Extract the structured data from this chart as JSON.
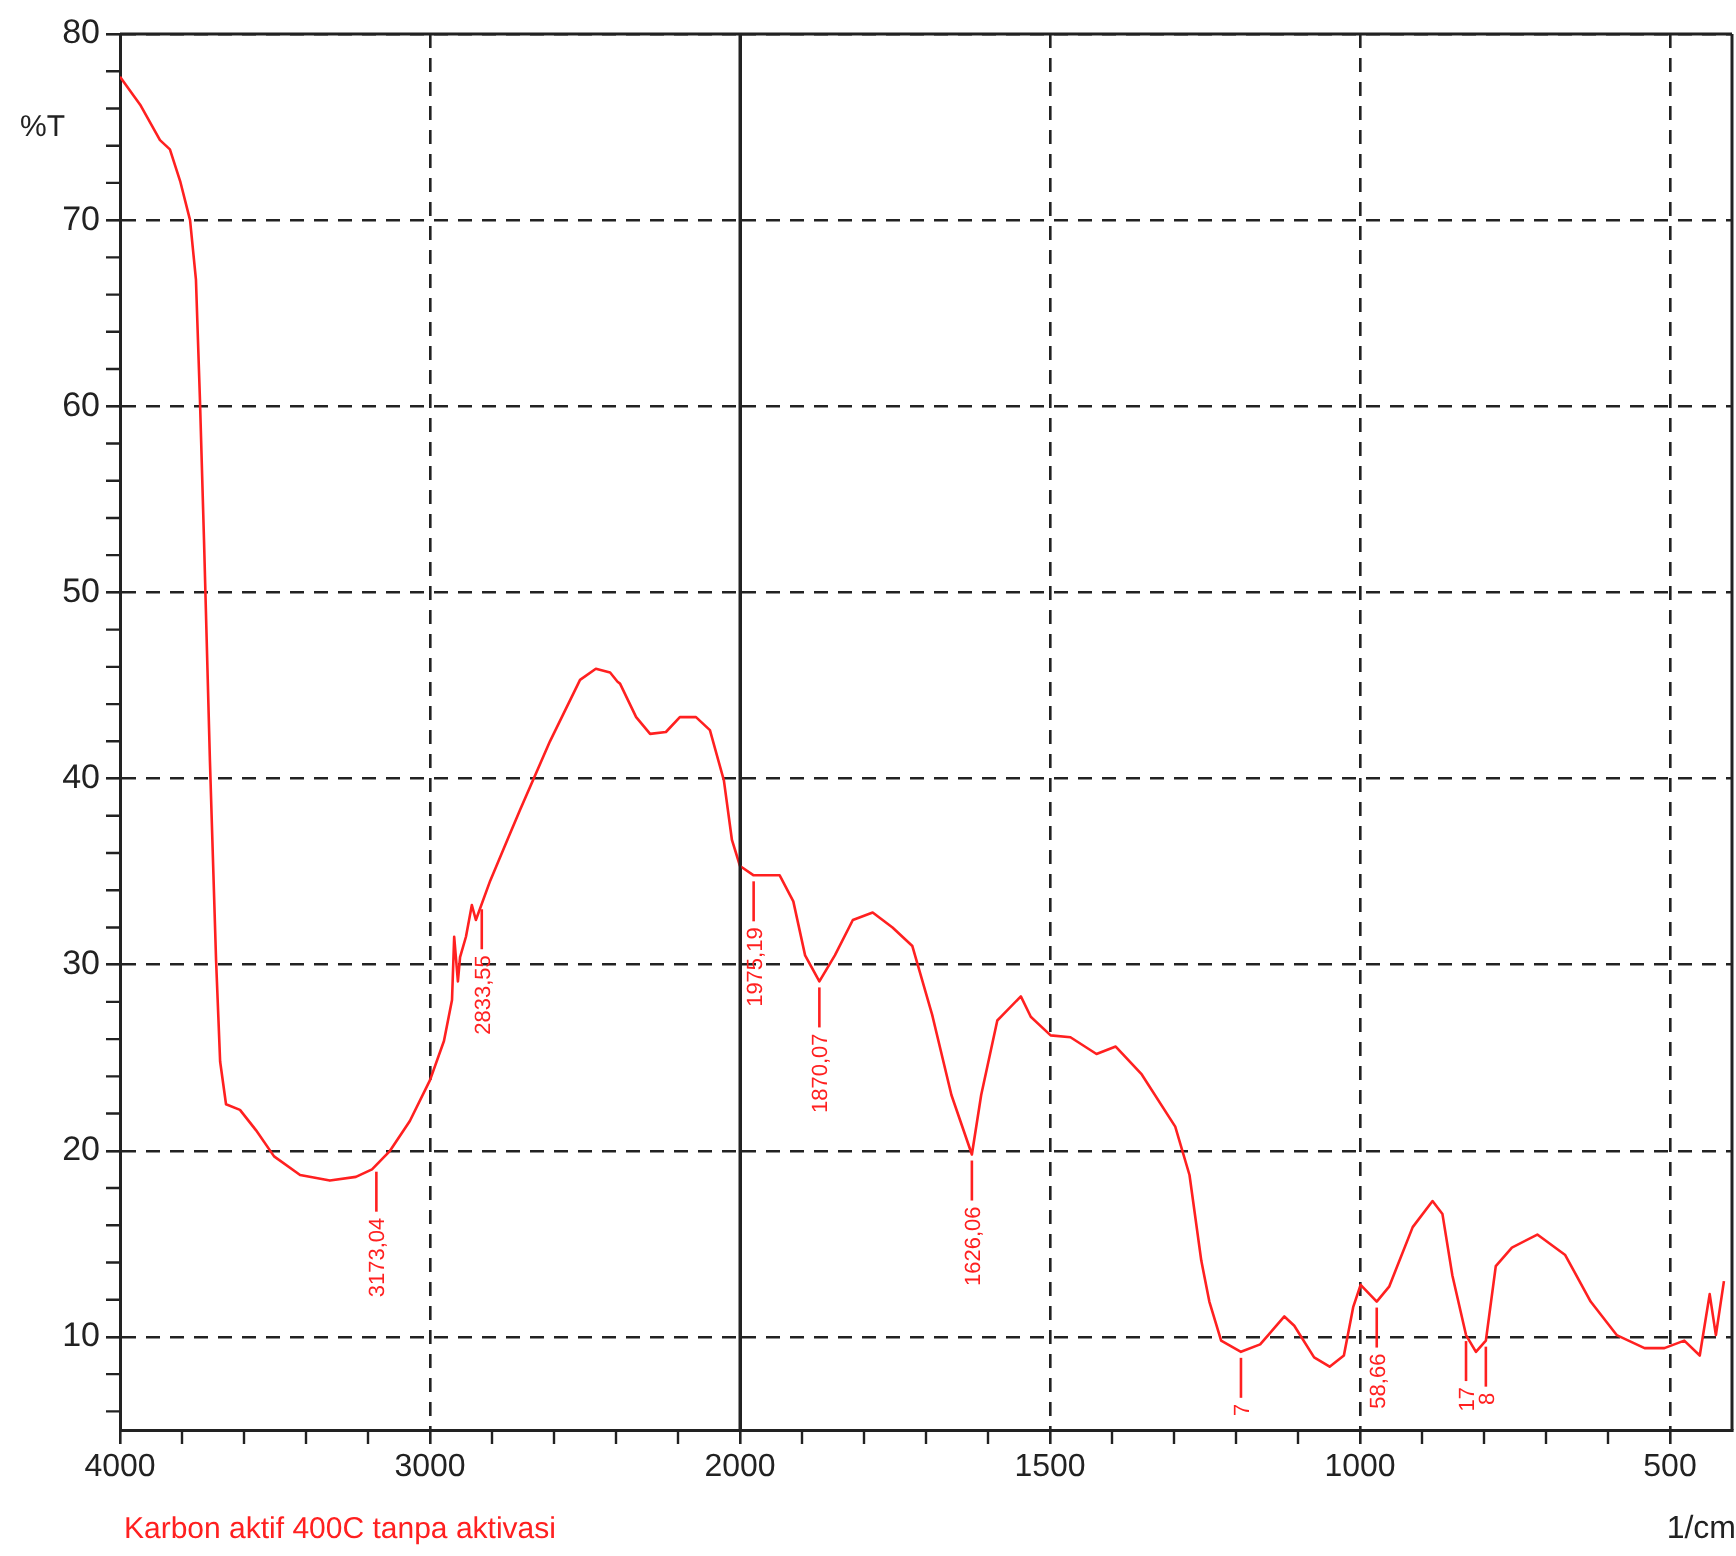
{
  "chart_data": [
    {
      "type": "line",
      "title": "Karbon aktif 400C tanpa aktivasi",
      "ylabel": "%T",
      "xlim": [
        4000,
        2000
      ],
      "ylim": [
        5,
        80
      ],
      "xticks": [
        4000,
        {
          "value": 3800,
          "label": null
        },
        {
          "value": 3600,
          "label": null
        },
        {
          "value": 3400,
          "label": null
        },
        {
          "value": 3200,
          "label": null
        },
        3000,
        {
          "value": 2800,
          "label": null
        },
        {
          "value": 2600,
          "label": null
        },
        {
          "value": 2400,
          "label": null
        },
        {
          "value": 2200,
          "label": null
        },
        2000
      ],
      "yticks": [
        {
          "value": 6,
          "label": null
        },
        {
          "value": 8,
          "label": null
        },
        10,
        {
          "value": 12,
          "label": null
        },
        {
          "value": 14,
          "label": null
        },
        {
          "value": 16,
          "label": null
        },
        {
          "value": 18,
          "label": null
        },
        20,
        {
          "value": 22,
          "label": null
        },
        {
          "value": 24,
          "label": null
        },
        {
          "value": 26,
          "label": null
        },
        {
          "value": 28,
          "label": null
        },
        30,
        {
          "value": 32,
          "label": null
        },
        {
          "value": 34,
          "label": null
        },
        {
          "value": 36,
          "label": null
        },
        {
          "value": 38,
          "label": null
        },
        40,
        {
          "value": 42,
          "label": null
        },
        {
          "value": 44,
          "label": null
        },
        {
          "value": 46,
          "label": null
        },
        {
          "value": 48,
          "label": null
        },
        50,
        {
          "value": 52,
          "label": null
        },
        {
          "value": 54,
          "label": null
        },
        {
          "value": 56,
          "label": null
        },
        {
          "value": 58,
          "label": null
        },
        60,
        {
          "value": 62,
          "label": null
        },
        {
          "value": 64,
          "label": null
        },
        {
          "value": 66,
          "label": null
        },
        {
          "value": 68,
          "label": null
        },
        70,
        {
          "value": 72,
          "label": null
        },
        {
          "value": 74,
          "label": null
        },
        {
          "value": 76,
          "label": null
        },
        {
          "value": 78,
          "label": null
        },
        80
      ],
      "grid": true,
      "legend": false,
      "line_style": "solid",
      "series": [
        {
          "color": "#ff2020",
          "x": [
            4000,
            3935,
            3871,
            3839,
            3806,
            3774,
            3755,
            3742,
            3729,
            3710,
            3690,
            3677,
            3658,
            3613,
            3561,
            3503,
            3419,
            3323,
            3239,
            3187,
            3129,
            3065,
            3000,
            2955,
            2929,
            2922,
            2910,
            2903,
            2884,
            2865,
            2852,
            2806,
            2710,
            2613,
            2516,
            2465,
            2419,
            2395,
            2387,
            2335,
            2290,
            2239,
            2194,
            2142,
            2097,
            2052,
            2026,
            2000
          ],
          "values": [
            77.7,
            76.2,
            74.3,
            73.8,
            72.1,
            70,
            66.8,
            60.3,
            52.8,
            41,
            30.2,
            24.8,
            22.5,
            22.2,
            21.1,
            19.7,
            18.7,
            18.4,
            18.6,
            19,
            20,
            21.6,
            23.8,
            25.9,
            28.1,
            31.5,
            29.1,
            30.4,
            31.5,
            33.2,
            32.4,
            34.5,
            38.3,
            42,
            45.3,
            45.9,
            45.7,
            45.2,
            45.1,
            43.3,
            42.4,
            42.5,
            43.3,
            43.3,
            42.6,
            39.9,
            36.7,
            35.3
          ]
        }
      ],
      "annotations": [
        {
          "text": "3173,04",
          "x": 3173,
          "y": 19.2
        },
        {
          "text": "2833,55",
          "x": 2833,
          "y": 33.3
        }
      ]
    },
    {
      "type": "line",
      "xlabel": "1/cm",
      "xlim": [
        2000,
        400
      ],
      "ylim": [
        5,
        80
      ],
      "xticks": [
        {
          "value": 1900,
          "label": null
        },
        {
          "value": 1800,
          "label": null
        },
        {
          "value": 1700,
          "label": null
        },
        {
          "value": 1600,
          "label": null
        },
        1500,
        {
          "value": 1400,
          "label": null
        },
        {
          "value": 1300,
          "label": null
        },
        {
          "value": 1200,
          "label": null
        },
        {
          "value": 1100,
          "label": null
        },
        1000,
        {
          "value": 900,
          "label": null
        },
        {
          "value": 800,
          "label": null
        },
        {
          "value": 700,
          "label": null
        },
        {
          "value": 600,
          "label": null
        },
        500
      ],
      "yticks": [
        10,
        20,
        30,
        40,
        50,
        60,
        70,
        80
      ],
      "tick_labels": "x",
      "grid": true,
      "legend": false,
      "line_style": "solid",
      "series": [
        {
          "color": "#ff2020",
          "x": [
            2000,
            1978,
            1936,
            1914,
            1895,
            1872,
            1847,
            1818,
            1786,
            1754,
            1722,
            1690,
            1659,
            1626,
            1611,
            1585,
            1547,
            1531,
            1499,
            1467,
            1425,
            1394,
            1352,
            1298,
            1275,
            1256,
            1243,
            1224,
            1192,
            1161,
            1122,
            1106,
            1074,
            1049,
            1026,
            1011,
            999,
            973,
            953,
            915,
            883,
            867,
            851,
            829,
            813,
            797,
            781,
            755,
            714,
            669,
            628,
            586,
            541,
            509,
            477,
            452,
            436,
            426,
            413
          ],
          "values": [
            35.3,
            34.8,
            34.8,
            33.4,
            30.5,
            29.1,
            30.5,
            32.4,
            32.8,
            32,
            31,
            27.3,
            23,
            19.8,
            23,
            27,
            28.3,
            27.2,
            26.2,
            26.1,
            25.2,
            25.6,
            24.1,
            21.3,
            18.7,
            14.1,
            11.9,
            9.8,
            9.2,
            9.6,
            11.1,
            10.6,
            8.9,
            8.4,
            9,
            11.6,
            12.8,
            11.9,
            12.7,
            15.9,
            17.3,
            16.6,
            13.3,
            10.1,
            9.2,
            9.8,
            13.8,
            14.8,
            15.5,
            14.4,
            11.9,
            10.1,
            9.4,
            9.4,
            9.8,
            9,
            12.3,
            10.1,
            13
          ]
        }
      ],
      "annotations": [
        {
          "text": "1975,19",
          "x": 1978,
          "y": 34.8
        },
        {
          "text": "1870,07",
          "x": 1872,
          "y": 29.1
        },
        {
          "text": "1626,06",
          "x": 1626,
          "y": 19.8
        },
        {
          "text": "58,66",
          "x": 973,
          "y": 11.9
        },
        {
          "text": "7",
          "x": 1192,
          "y": 9.2
        },
        {
          "text": "17",
          "x": 829,
          "y": 10.1
        },
        {
          "text": "8",
          "x": 797,
          "y": 9.8
        }
      ]
    }
  ]
}
